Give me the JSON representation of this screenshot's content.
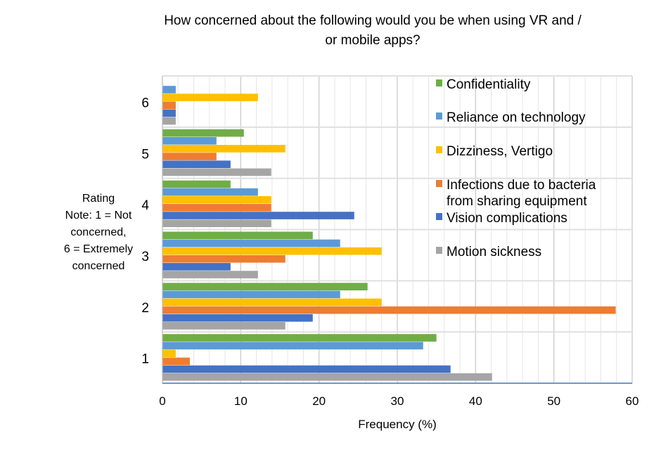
{
  "chart_data": {
    "type": "bar",
    "orientation": "horizontal",
    "title": "How concerned about the following would you be when using VR and / or mobile apps?",
    "xlabel": "Frequency (%)",
    "ylabel": [
      "Rating",
      "Note: 1 = Not",
      "concerned,",
      "6 = Extremely",
      "concerned"
    ],
    "xlim": [
      0,
      60
    ],
    "xticks": [
      "0",
      "10",
      "20",
      "30",
      "40",
      "50",
      "60"
    ],
    "categories": [
      "1",
      "2",
      "3",
      "4",
      "5",
      "6"
    ],
    "grid": true,
    "legend_position": "right-inside",
    "series": [
      {
        "name": "Confidentiality",
        "color": "#70ad47",
        "values": [
          35.0,
          26.2,
          19.2,
          8.7,
          10.4,
          0
        ]
      },
      {
        "name": "Reliance on technology",
        "color": "#5b9bd5",
        "values": [
          33.3,
          22.7,
          22.7,
          12.2,
          6.9,
          1.7
        ]
      },
      {
        "name": "Dizziness, Vertigo",
        "color": "#ffc000",
        "values": [
          1.7,
          28.0,
          28.0,
          13.9,
          15.7,
          12.2
        ]
      },
      {
        "name": "Infections due to bacteria from sharing equipment",
        "color": "#ed7d31",
        "values": [
          3.5,
          57.9,
          15.7,
          13.9,
          6.9,
          1.7
        ]
      },
      {
        "name": "Vision complications",
        "color": "#4472c4",
        "values": [
          36.8,
          19.2,
          8.7,
          24.5,
          8.7,
          1.7
        ]
      },
      {
        "name": "Motion sickness",
        "color": "#a5a5a5",
        "values": [
          42.1,
          15.7,
          12.2,
          13.9,
          13.9,
          1.7
        ]
      }
    ]
  }
}
